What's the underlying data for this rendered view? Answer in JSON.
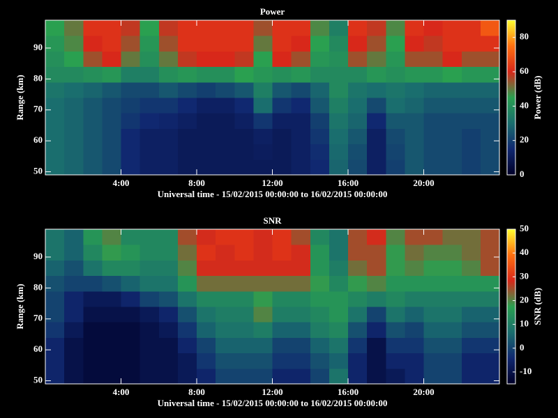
{
  "chart_data": [
    {
      "type": "heatmap",
      "title": "Power",
      "xlabel": "Universal time - 15/02/2015 00:00:00 to 16/02/2015 00:00:00",
      "ylabel": "Range (km)",
      "zlabel": "Power (dB)",
      "xbins": [
        0,
        1,
        2,
        3,
        4,
        5,
        6,
        7,
        8,
        9,
        10,
        11,
        12,
        13,
        14,
        15,
        16,
        17,
        18,
        19,
        20,
        21,
        22,
        23,
        24
      ],
      "ybins": [
        49,
        54,
        59,
        64,
        69,
        74,
        79,
        84,
        89,
        94,
        99
      ],
      "z": [
        [
          30,
          28,
          25,
          22,
          15,
          12,
          12,
          10,
          10,
          10,
          10,
          10,
          10,
          12,
          15,
          28,
          22,
          12,
          20,
          25,
          22,
          22,
          20,
          22
        ],
        [
          30,
          28,
          25,
          22,
          15,
          12,
          12,
          10,
          10,
          10,
          10,
          11,
          10,
          12,
          16,
          29,
          23,
          12,
          21,
          25,
          22,
          22,
          20,
          22
        ],
        [
          30,
          28,
          25,
          22,
          15,
          12,
          12,
          10,
          10,
          10,
          10,
          12,
          10,
          12,
          18,
          30,
          25,
          12,
          22,
          25,
          22,
          22,
          20,
          22
        ],
        [
          30,
          28,
          25,
          22,
          18,
          15,
          14,
          12,
          10,
          10,
          12,
          18,
          12,
          12,
          20,
          32,
          28,
          15,
          25,
          25,
          22,
          22,
          22,
          22
        ],
        [
          30,
          28,
          25,
          22,
          20,
          18,
          18,
          15,
          12,
          12,
          15,
          30,
          18,
          15,
          25,
          35,
          30,
          22,
          30,
          28,
          25,
          25,
          25,
          25
        ],
        [
          32,
          30,
          28,
          25,
          22,
          22,
          25,
          22,
          20,
          22,
          25,
          35,
          25,
          22,
          28,
          38,
          32,
          30,
          32,
          30,
          28,
          28,
          28,
          28
        ],
        [
          38,
          38,
          40,
          42,
          35,
          35,
          40,
          42,
          40,
          40,
          45,
          42,
          40,
          42,
          38,
          38,
          38,
          42,
          40,
          42,
          42,
          45,
          42,
          42
        ],
        [
          40,
          45,
          55,
          60,
          50,
          40,
          50,
          58,
          60,
          60,
          58,
          45,
          60,
          55,
          42,
          40,
          55,
          50,
          42,
          55,
          55,
          60,
          55,
          55
        ],
        [
          42,
          48,
          60,
          62,
          55,
          42,
          55,
          62,
          62,
          62,
          62,
          50,
          62,
          60,
          45,
          38,
          60,
          55,
          45,
          60,
          58,
          62,
          62,
          62
        ],
        [
          45,
          50,
          62,
          62,
          58,
          45,
          58,
          62,
          62,
          62,
          62,
          55,
          62,
          62,
          48,
          35,
          62,
          58,
          48,
          62,
          60,
          62,
          62,
          70
        ]
      ],
      "xlim": [
        0,
        24
      ],
      "xticks": [
        {
          "value": 4,
          "label": "4:00"
        },
        {
          "value": 8,
          "label": "8:00"
        },
        {
          "value": 12,
          "label": "12:00"
        },
        {
          "value": 16,
          "label": "16:00"
        },
        {
          "value": 20,
          "label": "20:00"
        }
      ],
      "ylim": [
        49,
        99
      ],
      "yticks": [
        50,
        60,
        70,
        80,
        90
      ],
      "zlim": [
        0,
        90
      ],
      "zticks": [
        0,
        20,
        40,
        60,
        80
      ],
      "colormap": [
        "#000028",
        "#102870",
        "#1a6e6e",
        "#2aa050",
        "#d8281a",
        "#ff7010",
        "#ffff30"
      ]
    },
    {
      "type": "heatmap",
      "title": "SNR",
      "xlabel": "Universal time - 15/02/2015 00:00:00 to 16/02/2015 00:00:00",
      "ylabel": "Range (km)",
      "zlabel": "SNR (dB)",
      "xbins": [
        0,
        1,
        2,
        3,
        4,
        5,
        6,
        7,
        8,
        9,
        10,
        11,
        12,
        13,
        14,
        15,
        16,
        17,
        18,
        19,
        20,
        21,
        22,
        23,
        24
      ],
      "ybins": [
        49,
        54,
        59,
        64,
        69,
        74,
        79,
        84,
        89,
        94,
        99
      ],
      "z": [
        [
          -5,
          -10,
          -12,
          -12,
          -12,
          -10,
          -10,
          -8,
          -5,
          0,
          0,
          0,
          -5,
          -5,
          0,
          8,
          -5,
          -10,
          -8,
          -5,
          0,
          0,
          -5,
          -5
        ],
        [
          -5,
          -10,
          -12,
          -12,
          -12,
          -10,
          -10,
          -8,
          -2,
          2,
          2,
          2,
          -2,
          -2,
          2,
          5,
          -5,
          -10,
          -5,
          -5,
          0,
          0,
          -5,
          -5
        ],
        [
          -5,
          -10,
          -12,
          -12,
          -12,
          -10,
          -10,
          -5,
          0,
          5,
          5,
          5,
          0,
          0,
          5,
          8,
          -2,
          -10,
          -2,
          -2,
          2,
          2,
          -2,
          -2
        ],
        [
          -2,
          -8,
          -12,
          -12,
          -12,
          -10,
          -8,
          -2,
          5,
          8,
          8,
          10,
          5,
          5,
          10,
          12,
          2,
          -5,
          2,
          0,
          5,
          5,
          2,
          2
        ],
        [
          0,
          -5,
          -10,
          -10,
          -10,
          -8,
          -5,
          2,
          8,
          10,
          10,
          20,
          10,
          10,
          12,
          15,
          8,
          0,
          8,
          5,
          8,
          8,
          5,
          5
        ],
        [
          0,
          -5,
          -8,
          -8,
          -5,
          0,
          2,
          8,
          12,
          12,
          12,
          18,
          12,
          12,
          15,
          15,
          12,
          10,
          12,
          10,
          10,
          10,
          10,
          10
        ],
        [
          2,
          0,
          0,
          2,
          5,
          8,
          8,
          15,
          22,
          22,
          22,
          22,
          22,
          22,
          18,
          12,
          18,
          20,
          15,
          15,
          15,
          15,
          15,
          15
        ],
        [
          5,
          2,
          8,
          12,
          12,
          10,
          10,
          20,
          28,
          28,
          28,
          28,
          28,
          28,
          15,
          10,
          22,
          25,
          18,
          20,
          18,
          18,
          20,
          25
        ],
        [
          8,
          5,
          12,
          18,
          15,
          12,
          12,
          22,
          30,
          28,
          30,
          28,
          30,
          28,
          15,
          8,
          25,
          25,
          18,
          22,
          20,
          20,
          22,
          25
        ],
        [
          8,
          5,
          15,
          20,
          12,
          12,
          12,
          25,
          28,
          30,
          30,
          28,
          30,
          25,
          12,
          8,
          25,
          28,
          20,
          25,
          25,
          22,
          22,
          25
        ]
      ],
      "xlim": [
        0,
        24
      ],
      "xticks": [
        {
          "value": 4,
          "label": "4:00"
        },
        {
          "value": 8,
          "label": "8:00"
        },
        {
          "value": 12,
          "label": "12:00"
        },
        {
          "value": 16,
          "label": "16:00"
        },
        {
          "value": 20,
          "label": "20:00"
        }
      ],
      "ylim": [
        49,
        99
      ],
      "yticks": [
        50,
        60,
        70,
        80,
        90
      ],
      "zlim": [
        -15,
        50
      ],
      "zticks": [
        -10,
        0,
        10,
        20,
        30,
        40,
        50
      ],
      "colormap": [
        "#000028",
        "#102870",
        "#1a6e6e",
        "#2aa050",
        "#d8281a",
        "#ff7010",
        "#ffff30"
      ]
    }
  ]
}
